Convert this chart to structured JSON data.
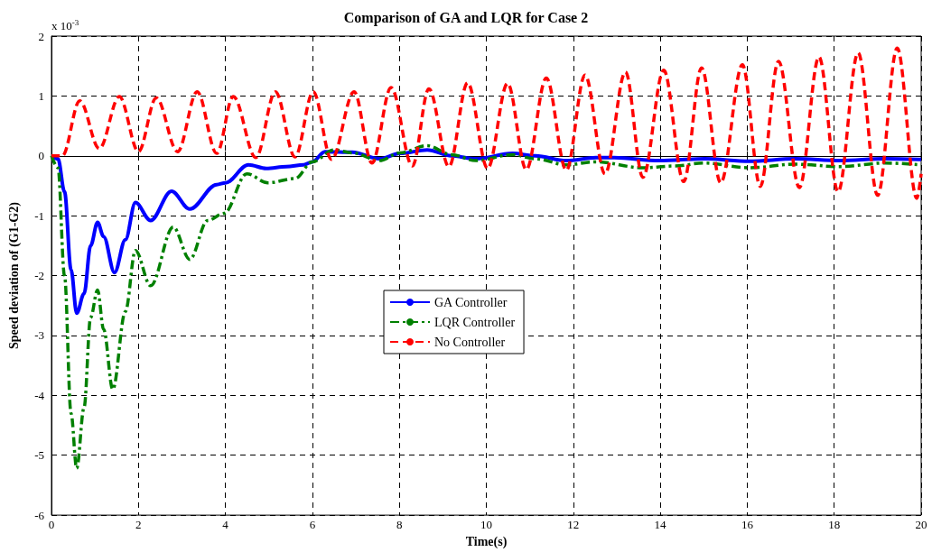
{
  "chart_data": {
    "type": "line",
    "title": "Comparison of GA and LQR for Case 2",
    "xlabel": "Time(s)",
    "ylabel": "Speed deviation of (G1-G2)",
    "annotations": [
      "x 10$^{-3}$"
    ],
    "xlim": [
      0,
      20
    ],
    "xticks": [
      0,
      2,
      4,
      6,
      8,
      10,
      12,
      14,
      16,
      18,
      20
    ],
    "ylim": [
      -6,
      2
    ],
    "yticks": [
      -6,
      -5,
      -4,
      -3,
      -2,
      -1,
      0,
      1,
      2
    ],
    "grid": true,
    "legend": "center",
    "marker": "none",
    "series": [
      {
        "name": "GA Controller",
        "color": "#0000ff",
        "line_style": "solid",
        "x": [
          0,
          0.15,
          0.3,
          0.45,
          0.58,
          0.75,
          0.9,
          1.06,
          1.2,
          1.45,
          1.7,
          1.93,
          2.28,
          2.76,
          3.18,
          3.8,
          4.0,
          4.53,
          4.94,
          5.4,
          5.8,
          6.0,
          6.29,
          6.92,
          7.54,
          8.02,
          8.64,
          9.2,
          9.76,
          10.6,
          11.13,
          11.84,
          12.52,
          12.94,
          13.98,
          15.02,
          16.05,
          17.1,
          18.13,
          19.17,
          20
        ],
        "values": [
          0,
          -0.05,
          -0.6,
          -1.9,
          -2.63,
          -2.3,
          -1.5,
          -1.11,
          -1.35,
          -1.95,
          -1.4,
          -0.78,
          -1.08,
          -0.59,
          -0.89,
          -0.48,
          -0.45,
          -0.15,
          -0.21,
          -0.18,
          -0.15,
          -0.1,
          0.07,
          0.06,
          -0.05,
          0.04,
          0.1,
          0,
          -0.05,
          0.04,
          0,
          -0.08,
          -0.03,
          -0.03,
          -0.08,
          -0.05,
          -0.09,
          -0.05,
          -0.08,
          -0.05,
          -0.06
        ]
      },
      {
        "name": "LQR Controller",
        "color": "#008000",
        "line_style": "dashdot",
        "x": [
          0,
          0.15,
          0.3,
          0.45,
          0.58,
          0.75,
          0.9,
          1.06,
          1.2,
          1.41,
          1.7,
          1.93,
          2.28,
          2.8,
          3.18,
          3.59,
          3.97,
          4.49,
          4.98,
          5.6,
          6.0,
          6.5,
          6.92,
          7.54,
          8.02,
          8.64,
          9.2,
          9.76,
          10.6,
          11.13,
          11.84,
          12.52,
          13.6,
          14.33,
          15.0,
          16.05,
          17.1,
          18.13,
          19.17,
          20
        ],
        "values": [
          0,
          -0.2,
          -2.0,
          -4.3,
          -5.22,
          -4.2,
          -2.7,
          -2.24,
          -2.9,
          -3.9,
          -2.6,
          -1.58,
          -2.17,
          -1.19,
          -1.73,
          -1.08,
          -0.96,
          -0.3,
          -0.45,
          -0.38,
          -0.1,
          0.1,
          0.05,
          -0.08,
          0.05,
          0.17,
          0.02,
          -0.08,
          0.02,
          -0.05,
          -0.15,
          -0.1,
          -0.2,
          -0.17,
          -0.12,
          -0.2,
          -0.14,
          -0.18,
          -0.12,
          -0.15
        ]
      },
      {
        "name": "No Controller",
        "color": "#ff0000",
        "line_style": "dashed",
        "x": [
          0,
          0.25,
          0.65,
          1.1,
          1.56,
          2.0,
          2.41,
          2.9,
          3.35,
          3.8,
          4.18,
          4.7,
          5.15,
          5.6,
          6.02,
          6.44,
          6.96,
          7.37,
          7.81,
          8.3,
          8.68,
          9.14,
          9.57,
          10.03,
          10.49,
          10.92,
          11.38,
          11.84,
          12.27,
          12.73,
          13.2,
          13.6,
          14.08,
          14.54,
          14.95,
          15.39,
          15.89,
          16.3,
          16.72,
          17.2,
          17.65,
          18.09,
          18.55,
          19.0,
          19.45,
          19.9,
          20
        ],
        "values": [
          0,
          0,
          0.92,
          0.12,
          0.99,
          0.07,
          0.97,
          0.07,
          1.07,
          0.04,
          0.99,
          -0.03,
          1.07,
          -0.02,
          1.07,
          -0.06,
          1.07,
          -0.12,
          1.14,
          -0.17,
          1.12,
          -0.18,
          1.22,
          -0.21,
          1.21,
          -0.23,
          1.3,
          -0.24,
          1.35,
          -0.3,
          1.4,
          -0.36,
          1.43,
          -0.43,
          1.47,
          -0.45,
          1.52,
          -0.51,
          1.58,
          -0.53,
          1.65,
          -0.6,
          1.72,
          -0.66,
          1.8,
          -0.71,
          -0.3
        ]
      }
    ]
  }
}
